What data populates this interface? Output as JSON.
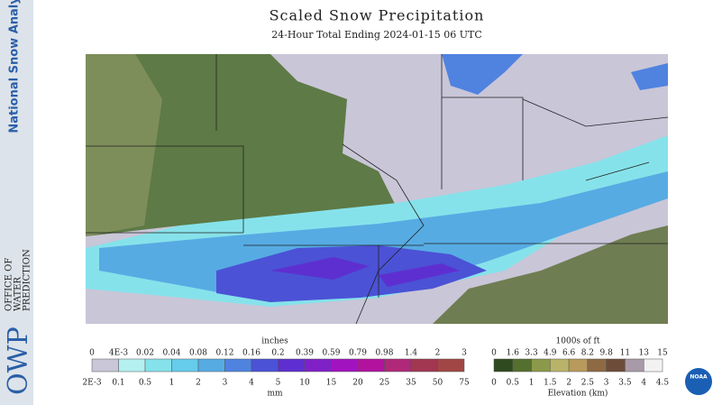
{
  "sidebar": {
    "product": "National Snow Analysis",
    "logo": "OWP",
    "office": [
      "OFFICE OF",
      "WATER",
      "PREDICTION"
    ]
  },
  "header": {
    "title": "Scaled Snow Precipitation",
    "subtitle": "24-Hour Total Ending 2024-01-15 06 UTC"
  },
  "precip_legend": {
    "top_unit": "inches",
    "bottom_unit": "mm",
    "inches": [
      "0",
      "4E-3",
      "0.02",
      "0.04",
      "0.08",
      "0.12",
      "0.16",
      "0.2",
      "0.39",
      "0.59",
      "0.79",
      "0.98",
      "1.4",
      "2",
      "3"
    ],
    "mm": [
      "2E-3",
      "0.1",
      "0.5",
      "1",
      "2",
      "3",
      "4",
      "5",
      "10",
      "15",
      "20",
      "25",
      "35",
      "50",
      "75"
    ],
    "colors": [
      "#c9c6d8",
      "#b4f0f0",
      "#86e2ea",
      "#66cceb",
      "#57abe3",
      "#4f83df",
      "#4b52d6",
      "#5e2fd0",
      "#8021c8",
      "#a213c0",
      "#b2129e",
      "#b02878",
      "#a23752",
      "#a24645"
    ]
  },
  "elevation_legend": {
    "top_unit": "1000s of ft",
    "bottom_unit": "Elevation (km)",
    "ft": [
      "0",
      "1.6",
      "3.3",
      "4.9",
      "6.6",
      "8.2",
      "9.8",
      "11",
      "13",
      "15"
    ],
    "km": [
      "0",
      "0.5",
      "1",
      "1.5",
      "2",
      "2.5",
      "3",
      "3.5",
      "4",
      "4.5"
    ],
    "colors": [
      "#2f4a1e",
      "#55702e",
      "#8a9a4a",
      "#b9b36a",
      "#b89a5c",
      "#8e6a44",
      "#6e4c3a",
      "#a99aa8",
      "#f2f2f2"
    ]
  },
  "badge": "NOAA"
}
